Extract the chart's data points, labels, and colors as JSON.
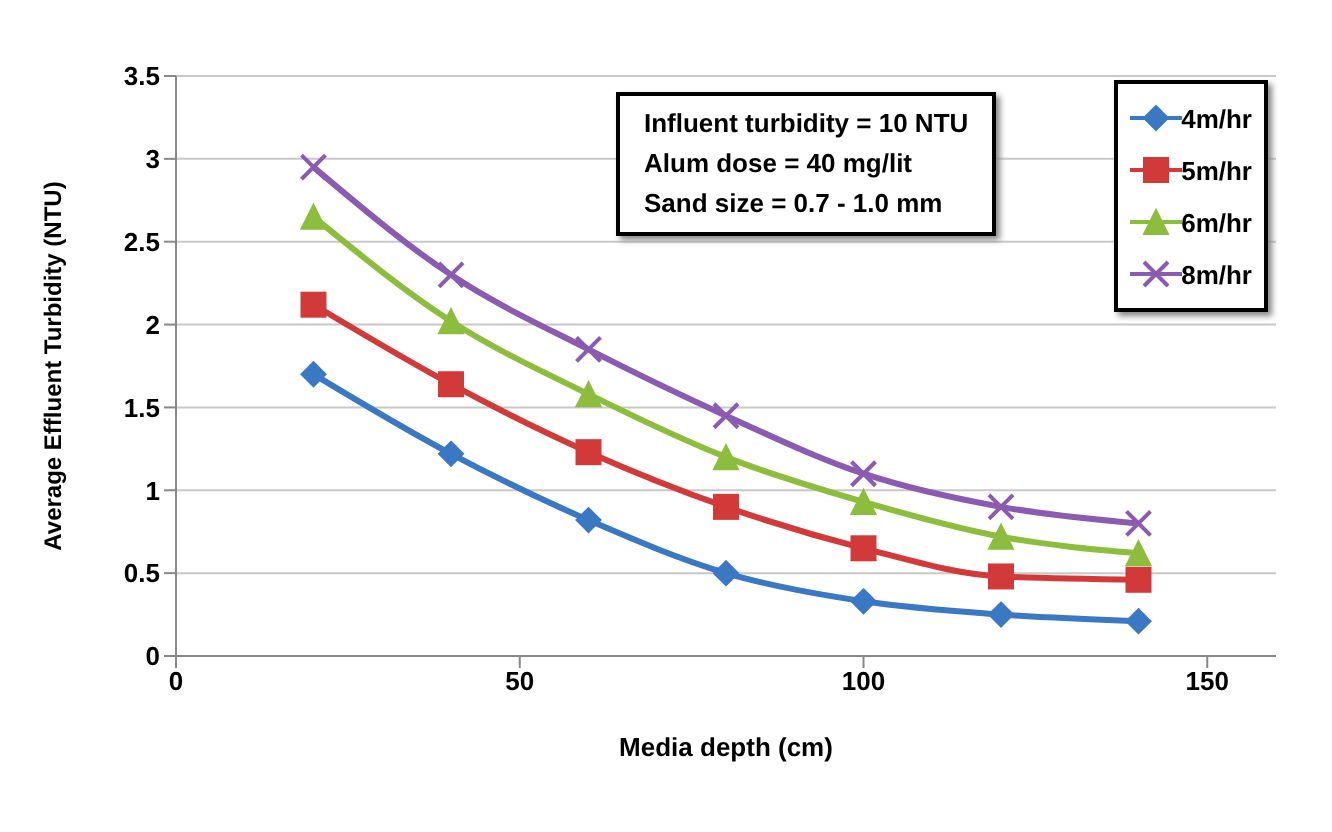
{
  "chart_data": {
    "type": "line",
    "xlabel": "Media depth (cm)",
    "ylabel": "Average Effluent Turbidity (NTU)",
    "annotations": [
      "Influent turbidity = 10 NTU",
      "Alum dose = 40 mg/lit",
      "Sand size = 0.7 - 1.0 mm"
    ],
    "x": [
      20,
      40,
      60,
      80,
      100,
      120,
      140
    ],
    "series": [
      {
        "name": "4m/hr",
        "color": "#3a78c4",
        "marker": "diamond",
        "values": [
          1.7,
          1.22,
          0.82,
          0.5,
          0.33,
          0.25,
          0.21
        ]
      },
      {
        "name": "5m/hr",
        "color": "#d23a3a",
        "marker": "square",
        "values": [
          2.12,
          1.64,
          1.23,
          0.9,
          0.65,
          0.48,
          0.46
        ]
      },
      {
        "name": "6m/hr",
        "color": "#8cbd3c",
        "marker": "triangle",
        "values": [
          2.65,
          2.02,
          1.58,
          1.2,
          0.93,
          0.72,
          0.62
        ]
      },
      {
        "name": "8m/hr",
        "color": "#8a5bb0",
        "marker": "cross",
        "values": [
          2.95,
          2.3,
          1.85,
          1.45,
          1.1,
          0.9,
          0.8
        ]
      }
    ],
    "xlim": [
      0,
      160
    ],
    "xticks": [
      0,
      50,
      100,
      150
    ],
    "ylim": [
      0,
      3.5
    ],
    "yticks": [
      0,
      0.5,
      1,
      1.5,
      2,
      2.5,
      3,
      3.5
    ],
    "grid": "y",
    "legend": "top right",
    "line_style": "solid"
  }
}
